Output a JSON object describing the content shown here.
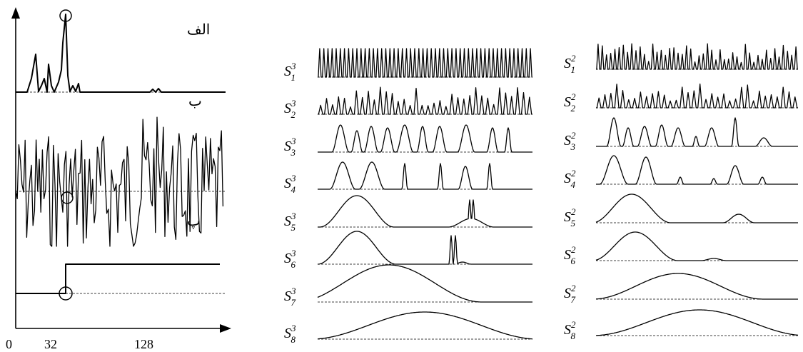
{
  "left_panel": {
    "x_ticks": [
      "0",
      "32",
      "128"
    ],
    "label_a": "الف",
    "label_b": "ب",
    "label_c": "پ"
  },
  "middle_panel": {
    "labels": [
      {
        "base": "S",
        "sup": "3",
        "sub": "1"
      },
      {
        "base": "S",
        "sup": "3",
        "sub": "2"
      },
      {
        "base": "S",
        "sup": "3",
        "sub": "3"
      },
      {
        "base": "S",
        "sup": "3",
        "sub": "4"
      },
      {
        "base": "S",
        "sup": "3",
        "sub": "5"
      },
      {
        "base": "S",
        "sup": "3",
        "sub": "6"
      },
      {
        "base": "S",
        "sup": "3",
        "sub": "7"
      },
      {
        "base": "S",
        "sup": "3",
        "sub": "8"
      }
    ]
  },
  "right_panel": {
    "labels": [
      {
        "base": "S",
        "sup": "2",
        "sub": "1"
      },
      {
        "base": "S",
        "sup": "2",
        "sub": "2"
      },
      {
        "base": "S",
        "sup": "2",
        "sub": "3"
      },
      {
        "base": "S",
        "sup": "2",
        "sub": "4"
      },
      {
        "base": "S",
        "sup": "2",
        "sub": "5"
      },
      {
        "base": "S",
        "sup": "2",
        "sub": "6"
      },
      {
        "base": "S",
        "sup": "2",
        "sub": "7"
      },
      {
        "base": "S",
        "sup": "2",
        "sub": "8"
      }
    ]
  }
}
